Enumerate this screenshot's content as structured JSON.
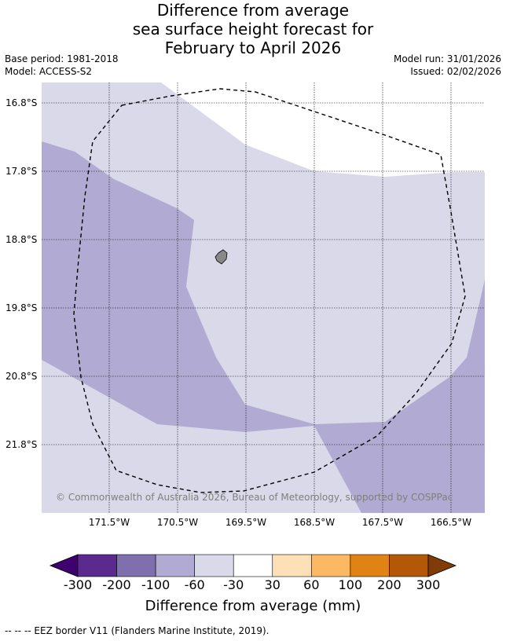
{
  "title": {
    "line1": "Difference from average",
    "line2": "sea surface height forecast for",
    "line3": "February to April 2026"
  },
  "meta": {
    "base_period": "Base period: 1981-2018",
    "model": "Model: ACCESS-S2",
    "model_run": "Model run: 31/01/2026",
    "issued": "Issued: 02/02/2026"
  },
  "map": {
    "latitudes": [
      "16.8°S",
      "17.8°S",
      "18.8°S",
      "19.8°S",
      "20.8°S",
      "21.8°S"
    ],
    "longitudes": [
      "171.5°W",
      "170.5°W",
      "169.5°W",
      "168.5°W",
      "167.5°W",
      "166.5°W"
    ],
    "copyright": "© Commonwealth of Australia 2026, Bureau of Meteorology, supported by COSPPac",
    "colors": {
      "neg_100_60": "#b1abd3",
      "neg_60_30": "#d9d9ea",
      "neutral": "#ffffff",
      "land": "#888888",
      "grid": "#000000"
    }
  },
  "colorbar": {
    "ticks": [
      "-300",
      "-200",
      "-100",
      "-60",
      "-30",
      "30",
      "60",
      "100",
      "200",
      "300"
    ],
    "colors": [
      "#3f0070",
      "#5b2a8e",
      "#7f6fae",
      "#b1abd3",
      "#d9d9ea",
      "#ffffff",
      "#fde0b6",
      "#fdb863",
      "#e08214",
      "#b35806",
      "#7f3b08"
    ],
    "label": "Difference from average (mm)"
  },
  "footer": "--  --  -- EEZ border V11 (Flanders Marine Institute, 2019)."
}
